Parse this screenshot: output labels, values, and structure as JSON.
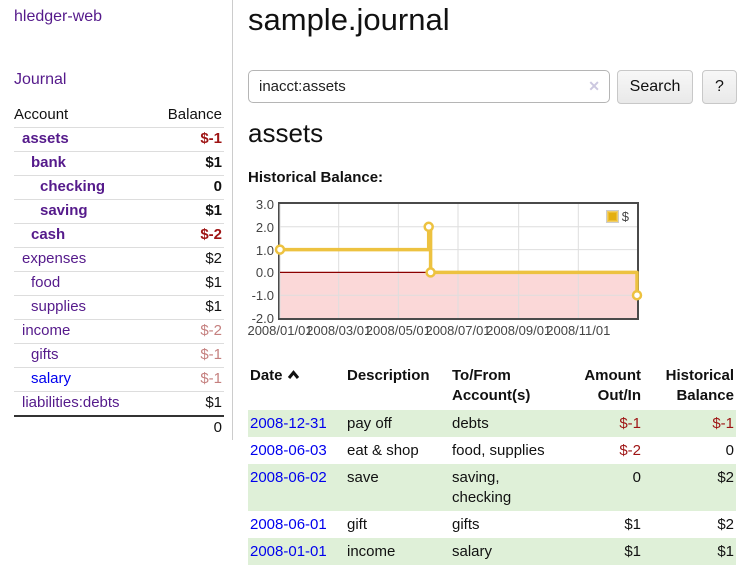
{
  "app": {
    "brand": "hledger-web",
    "nav": {
      "journal": "Journal"
    }
  },
  "sidebar": {
    "table_headers": {
      "account": "Account",
      "balance": "Balance"
    },
    "accounts": [
      {
        "name": "assets",
        "balance": "$-1"
      },
      {
        "name": "bank",
        "balance": "$1"
      },
      {
        "name": "checking",
        "balance": "0"
      },
      {
        "name": "saving",
        "balance": "$1"
      },
      {
        "name": "cash",
        "balance": "$-2"
      },
      {
        "name": "expenses",
        "balance": "$2"
      },
      {
        "name": "food",
        "balance": "$1"
      },
      {
        "name": "supplies",
        "balance": "$1"
      },
      {
        "name": "income",
        "balance": "$-2"
      },
      {
        "name": "gifts",
        "balance": "$-1"
      },
      {
        "name": "salary",
        "balance": "$-1"
      },
      {
        "name": "liabilities:debts",
        "balance": "$1"
      }
    ],
    "total": "0"
  },
  "header": {
    "title": "sample.journal"
  },
  "search": {
    "value": "inacct:assets",
    "clear_icon": "✕",
    "search_button": "Search",
    "help_button": "?"
  },
  "account_page": {
    "title": "assets",
    "chart_heading": "Historical Balance:"
  },
  "chart_data": {
    "type": "line",
    "step": true,
    "title": "Historical Balance",
    "series": [
      {
        "name": "$",
        "color": "#edc240",
        "points": [
          [
            "2008-01-01",
            1.0
          ],
          [
            "2008-06-01",
            2.0
          ],
          [
            "2008-06-03",
            0.0
          ],
          [
            "2008-12-31",
            -1.0
          ]
        ]
      }
    ],
    "xrange": [
      "2008-01-01",
      "2008-12-31"
    ],
    "ylim": [
      -2,
      3
    ],
    "xticks": [
      "2008/01/01",
      "2008/03/01",
      "2008/05/01",
      "2008/07/01",
      "2008/09/01",
      "2008/11/01"
    ],
    "yticks": [
      "3.0",
      "2.0",
      "1.0",
      "0.0",
      "-1.0",
      "-2.0"
    ],
    "grid": true,
    "legend": {
      "label": "$",
      "position": "top-right"
    },
    "negative_region": {
      "from": 0,
      "to": -2,
      "color": "#fbd8d8",
      "line_color": "#8b0000"
    }
  },
  "register": {
    "headers": {
      "date": "Date",
      "description": "Description",
      "accounts": "To/From Account(s)",
      "amount": "Amount Out/In",
      "balance": "Historical Balance"
    },
    "rows": [
      {
        "date": "2008-12-31",
        "description": "pay off",
        "accounts": "debts",
        "amount": "$-1",
        "balance": "$-1"
      },
      {
        "date": "2008-06-03",
        "description": "eat & shop",
        "accounts": "food, supplies",
        "amount": "$-2",
        "balance": "0"
      },
      {
        "date": "2008-06-02",
        "description": "save",
        "accounts": "saving, checking",
        "amount": "0",
        "balance": "$2"
      },
      {
        "date": "2008-06-01",
        "description": "gift",
        "accounts": "gifts",
        "amount": "$1",
        "balance": "$2"
      },
      {
        "date": "2008-01-01",
        "description": "income",
        "accounts": "salary",
        "amount": "$1",
        "balance": "$1"
      }
    ]
  },
  "colors": {
    "link": "#0000ee",
    "link_visited": "#551a8b",
    "negative_strong": "#9e1414",
    "negative_muted": "#c5807f",
    "row_stripe_green": "#dff0d8",
    "chart_line": "#edc240",
    "chart_negative_bg": "#fbd8d8",
    "chart_zero_line": "#8b0000"
  }
}
